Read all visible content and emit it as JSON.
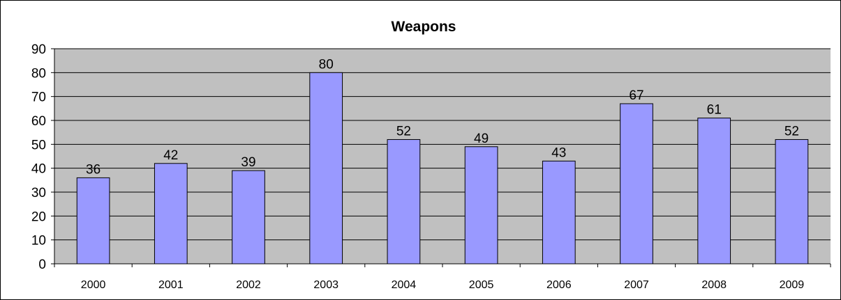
{
  "chart_data": {
    "type": "bar",
    "title": "Weapons",
    "categories": [
      "2000",
      "2001",
      "2002",
      "2003",
      "2004",
      "2005",
      "2006",
      "2007",
      "2008",
      "2009"
    ],
    "values": [
      36,
      42,
      39,
      80,
      52,
      49,
      43,
      67,
      61,
      52
    ],
    "ylim": [
      0,
      90
    ],
    "yticks": [
      "0",
      "10",
      "20",
      "30",
      "40",
      "50",
      "60",
      "70",
      "80",
      "90"
    ],
    "grid": true,
    "legend": "none",
    "colors": {
      "bar": "#9999ff",
      "plot_background": "#c0c0c0",
      "gridline": "#000000"
    }
  }
}
